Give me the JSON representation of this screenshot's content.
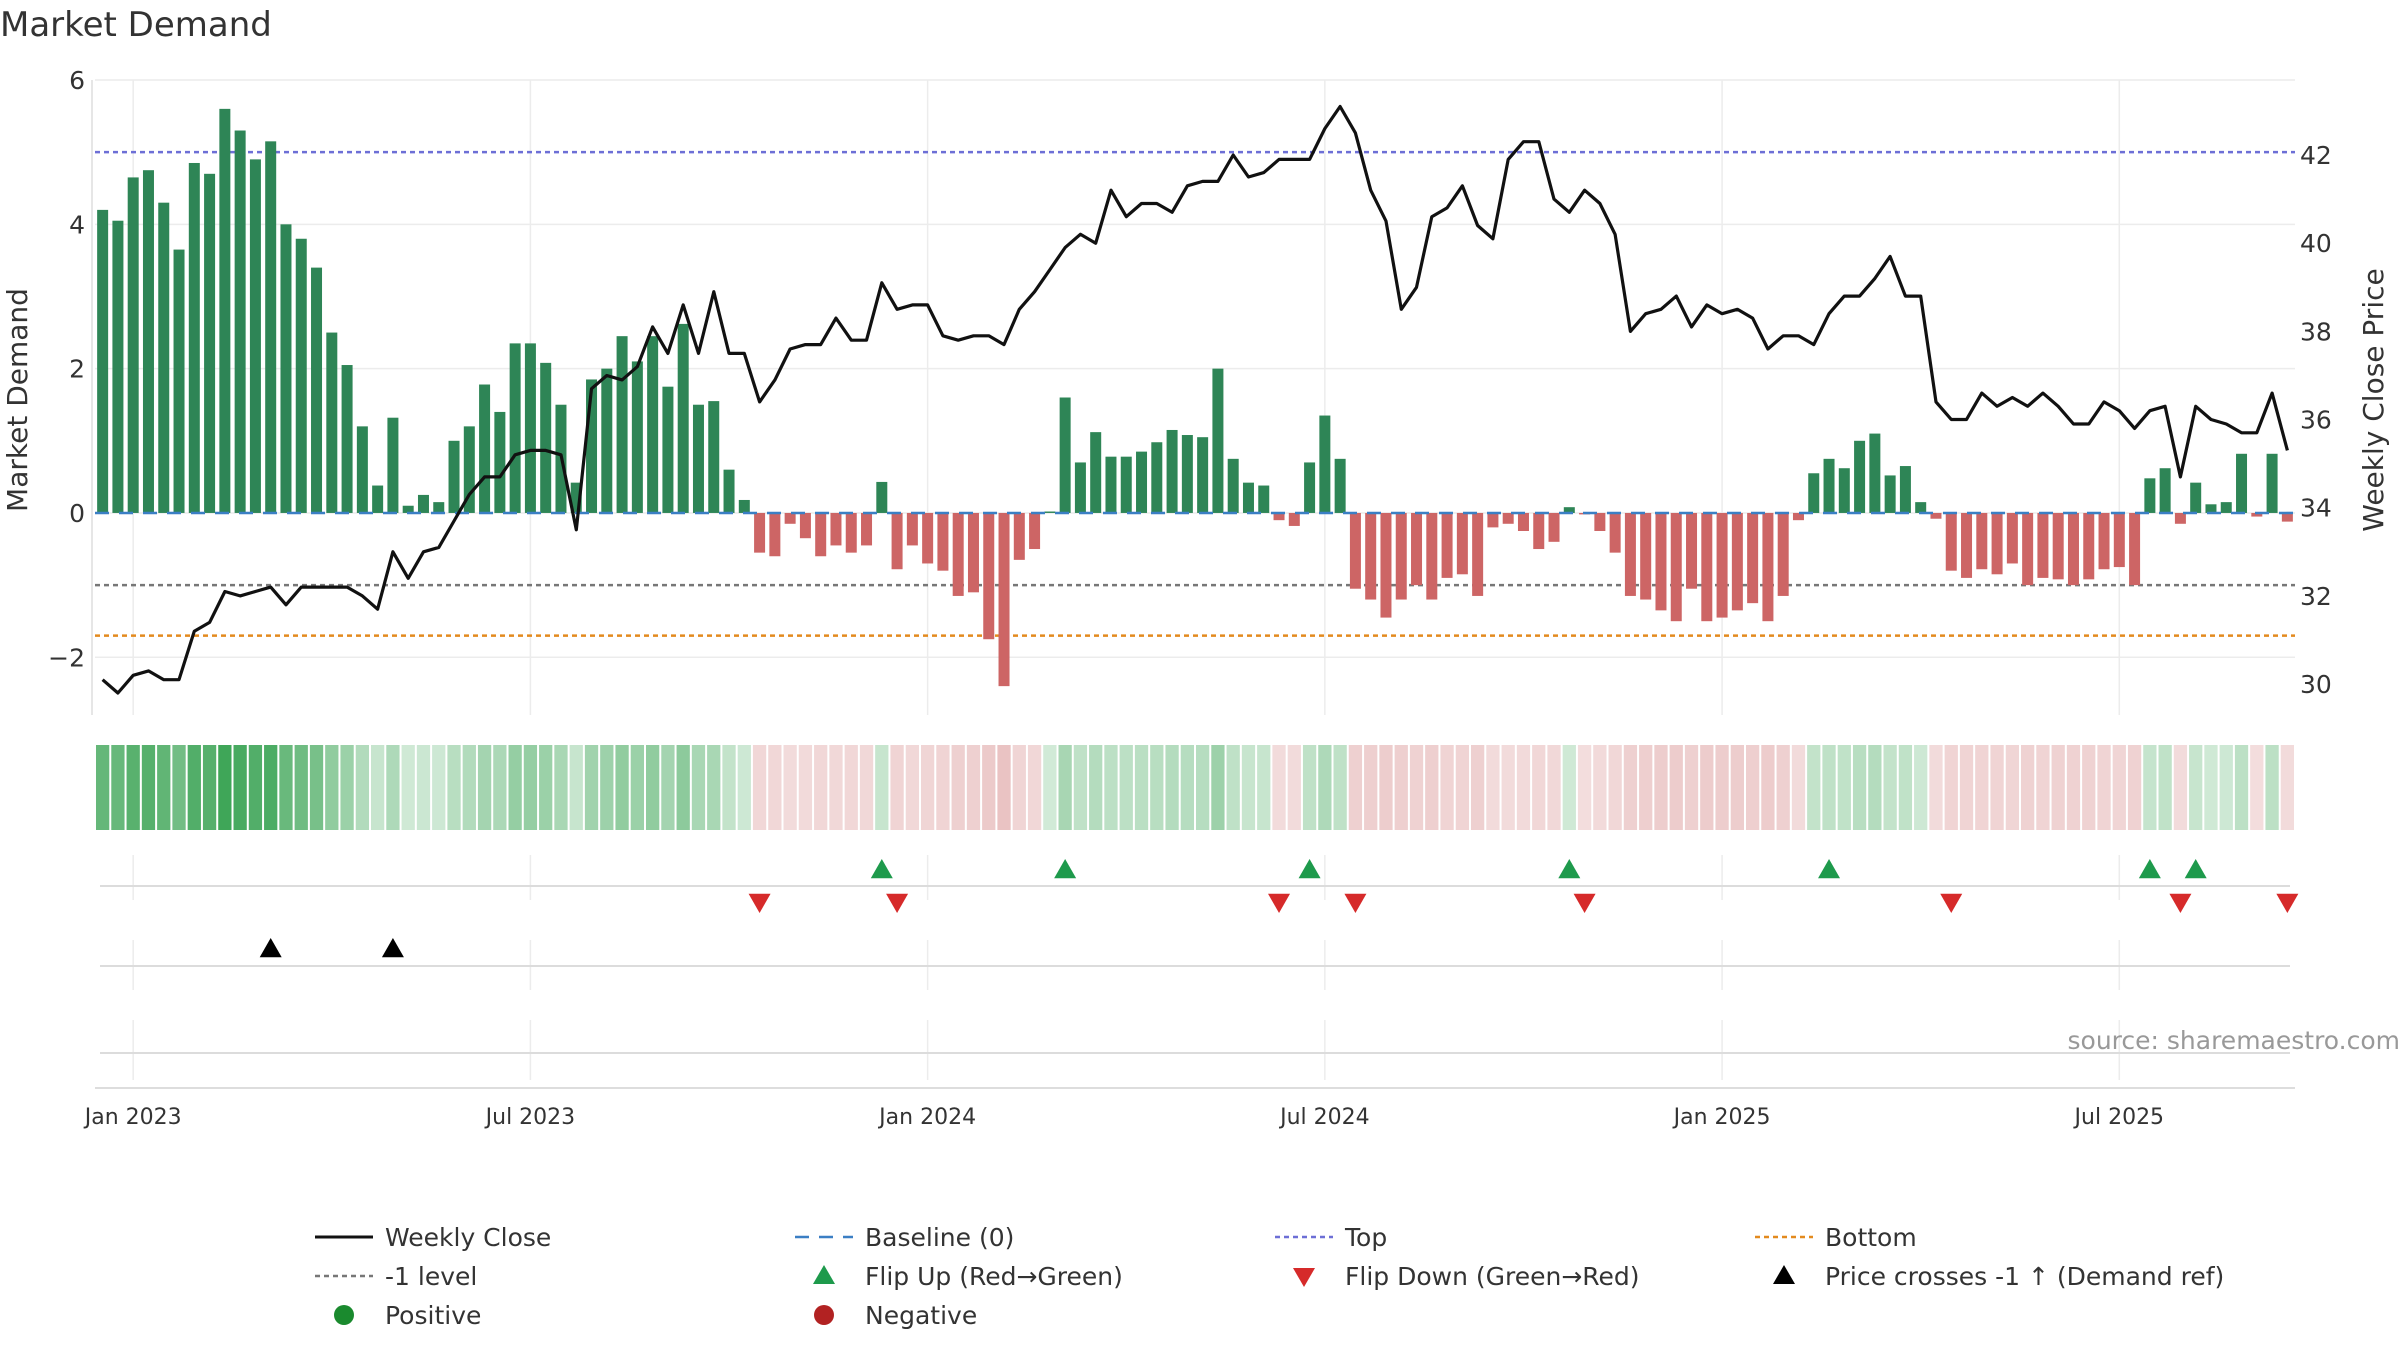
{
  "chart_data": {
    "type": "bar",
    "title": "Market Demand",
    "ylabel_left": "Market Demand",
    "ylabel_right": "Weekly Close Price",
    "source": "source: sharemaestro.com",
    "left_axis": {
      "ylim": [
        -2.8,
        6.0
      ],
      "ticks": [
        -2,
        0,
        2,
        4,
        6
      ],
      "tick_labels": [
        "−2",
        "0",
        "2",
        "4",
        "6"
      ]
    },
    "right_axis": {
      "ylim": [
        29.3,
        43.7
      ],
      "ticks": [
        30,
        32,
        34,
        36,
        38,
        40,
        42
      ],
      "tick_labels": [
        "30",
        "32",
        "34",
        "36",
        "38",
        "40",
        "42"
      ]
    },
    "x_ticks": [
      {
        "week": 2,
        "label": "Jan 2023"
      },
      {
        "week": 28,
        "label": "Jul 2023"
      },
      {
        "week": 54,
        "label": "Jan 2024"
      },
      {
        "week": 80,
        "label": "Jul 2024"
      },
      {
        "week": 106,
        "label": "Jan 2025"
      },
      {
        "week": 132,
        "label": "Jul 2025"
      }
    ],
    "reference_lines": {
      "top": 5.0,
      "minus_one": -1.0,
      "bottom": -1.7,
      "baseline": 0
    },
    "demand": [
      4.2,
      4.05,
      4.65,
      4.75,
      4.3,
      3.65,
      4.85,
      4.7,
      5.6,
      5.3,
      4.9,
      5.15,
      4.0,
      3.8,
      3.4,
      2.5,
      2.05,
      1.2,
      0.38,
      1.32,
      0.1,
      0.25,
      0.15,
      1.0,
      1.2,
      1.78,
      1.4,
      2.35,
      2.35,
      2.08,
      1.5,
      0.42,
      1.85,
      2.0,
      2.45,
      2.1,
      2.45,
      1.75,
      2.62,
      1.5,
      1.55,
      0.6,
      0.18,
      -0.55,
      -0.6,
      -0.15,
      -0.35,
      -0.6,
      -0.45,
      -0.55,
      -0.45,
      0.43,
      -0.78,
      -0.45,
      -0.7,
      -0.8,
      -1.15,
      -1.1,
      -1.75,
      -2.4,
      -0.65,
      -0.5,
      0.02,
      1.6,
      0.7,
      1.12,
      0.78,
      0.78,
      0.85,
      0.98,
      1.15,
      1.08,
      1.05,
      2.0,
      0.75,
      0.42,
      0.38,
      -0.1,
      -0.18,
      0.7,
      1.35,
      0.75,
      -1.05,
      -1.2,
      -1.45,
      -1.2,
      -1.0,
      -1.2,
      -0.9,
      -0.85,
      -1.15,
      -0.2,
      -0.15,
      -0.25,
      -0.5,
      -0.4,
      0.08,
      -0.02,
      -0.25,
      -0.55,
      -1.15,
      -1.2,
      -1.35,
      -1.5,
      -1.05,
      -1.5,
      -1.45,
      -1.35,
      -1.25,
      -1.5,
      -1.15,
      -0.1,
      0.55,
      0.75,
      0.62,
      1.0,
      1.1,
      0.52,
      0.65,
      0.15,
      -0.08,
      -0.8,
      -0.9,
      -0.78,
      -0.85,
      -0.7,
      -1.0,
      -0.9,
      -0.92,
      -1.0,
      -0.92,
      -0.78,
      -0.75,
      -1.0,
      0.48,
      0.62,
      -0.15,
      0.42,
      0.12,
      0.15,
      0.82,
      -0.05,
      0.82,
      -0.12
    ],
    "weekly_close": [
      30.1,
      29.8,
      30.2,
      30.3,
      30.1,
      30.1,
      31.2,
      31.4,
      32.1,
      32.0,
      32.1,
      32.2,
      31.8,
      32.2,
      32.2,
      32.2,
      32.2,
      32.0,
      31.7,
      33.0,
      32.4,
      33.0,
      33.1,
      33.7,
      34.3,
      34.7,
      34.7,
      35.2,
      35.3,
      35.3,
      35.2,
      33.5,
      36.7,
      37.0,
      36.9,
      37.2,
      38.1,
      37.5,
      38.6,
      37.5,
      38.9,
      37.5,
      37.5,
      36.4,
      36.9,
      37.6,
      37.7,
      37.7,
      38.3,
      37.8,
      37.8,
      39.1,
      38.5,
      38.6,
      38.6,
      37.9,
      37.8,
      37.9,
      37.9,
      37.7,
      38.5,
      38.9,
      39.4,
      39.9,
      40.2,
      40.0,
      41.2,
      40.6,
      40.9,
      40.9,
      40.7,
      41.3,
      41.4,
      41.4,
      42.0,
      41.5,
      41.6,
      41.9,
      41.9,
      41.9,
      42.6,
      43.1,
      42.5,
      41.2,
      40.5,
      38.5,
      39.0,
      40.6,
      40.8,
      41.3,
      40.4,
      40.1,
      41.9,
      42.3,
      42.3,
      41.0,
      40.7,
      41.2,
      40.9,
      40.2,
      38.0,
      38.4,
      38.5,
      38.8,
      38.1,
      38.6,
      38.4,
      38.5,
      38.3,
      37.6,
      37.9,
      37.9,
      37.7,
      38.4,
      38.8,
      38.8,
      39.2,
      39.7,
      38.8,
      38.8,
      36.4,
      36.0,
      36.0,
      36.6,
      36.3,
      36.5,
      36.3,
      36.6,
      36.3,
      35.9,
      35.9,
      36.4,
      36.2,
      35.8,
      36.2,
      36.3,
      34.7,
      36.3,
      36.0,
      35.9,
      35.7,
      35.7,
      36.6,
      35.3
    ],
    "flip_up_weeks": [
      51,
      63,
      79,
      96,
      113,
      134,
      137
    ],
    "flip_down_weeks": [
      43,
      52,
      77,
      82,
      97,
      121,
      136,
      143
    ],
    "price_cross_weeks": [
      11,
      19
    ],
    "legend": [
      {
        "label": "Weekly Close",
        "marker": "line",
        "color": "#111111"
      },
      {
        "label": "Baseline (0)",
        "marker": "dash",
        "color": "#3b7fc4"
      },
      {
        "label": "Top",
        "marker": "dot",
        "color": "#6d6fd6"
      },
      {
        "label": "Bottom",
        "marker": "dot",
        "color": "#e38a1e"
      },
      {
        "label": "-1 level",
        "marker": "dot",
        "color": "#777777"
      },
      {
        "label": "Flip Up (Red→Green)",
        "marker": "tri-up",
        "color": "#1e9a4c"
      },
      {
        "label": "Flip Down (Green→Red)",
        "marker": "tri-down",
        "color": "#d62a2a"
      },
      {
        "label": "Price crosses -1 ↑ (Demand ref)",
        "marker": "tri-up",
        "color": "#000000"
      },
      {
        "label": "Positive",
        "marker": "circle",
        "color": "#1a8a2e"
      },
      {
        "label": "Negative",
        "marker": "circle",
        "color": "#b22222"
      }
    ],
    "colors": {
      "positive_bar": "#2e8556",
      "negative_bar": "#cd6565",
      "top_line": "#6d6fd6",
      "bottom_line": "#e38a1e",
      "minus_one_line": "#777777",
      "baseline": "#3b7fc4",
      "close_line": "#111111",
      "grid": "#ececec"
    }
  }
}
